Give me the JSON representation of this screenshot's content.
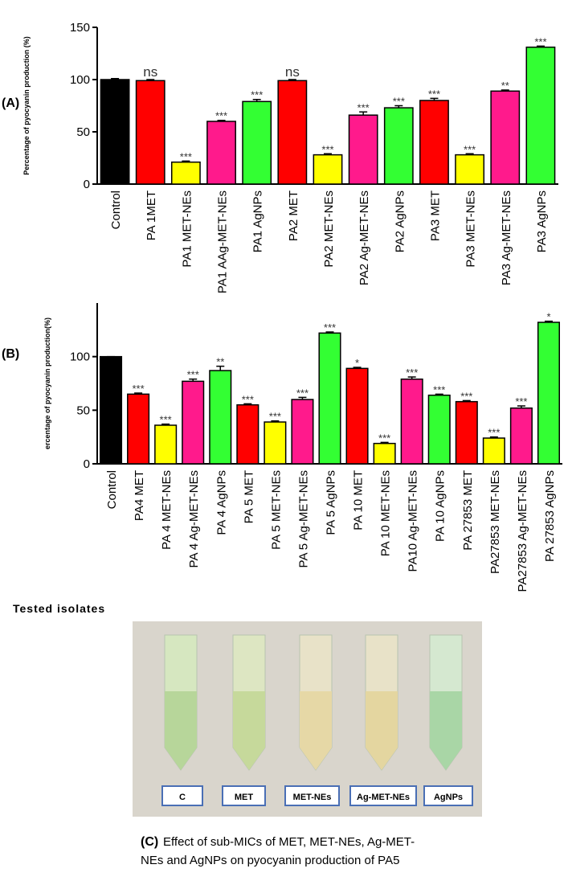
{
  "chart_data": [
    {
      "type": "bar",
      "panel_label": "(A)",
      "y_label": "Percentage of pyocyanin production (%)",
      "categories": [
        "Control",
        "PA 1MET",
        "PA1 MET-NEs",
        "PA1 AAg-MET-NEs",
        "PA1 AgNPs",
        "PA2 MET",
        "PA2 MET-NEs",
        "PA2 Ag-MET-NEs",
        "PA2 AgNPs",
        "PA3 MET",
        "PA3 MET-NEs",
        "PA3 Ag-MET-NEs",
        "PA3 AgNPs"
      ],
      "values": [
        100,
        99,
        21,
        60,
        79,
        99,
        28,
        66,
        73,
        80,
        28,
        89,
        131
      ],
      "errors": [
        1,
        1,
        1,
        1,
        2,
        1,
        1,
        3,
        2,
        2,
        1,
        1,
        1
      ],
      "colors": [
        "#000000",
        "#ff0000",
        "#ffff00",
        "#ff1a8c",
        "#33ff33",
        "#ff0000",
        "#ffff00",
        "#ff1a8c",
        "#33ff33",
        "#ff0000",
        "#ffff00",
        "#ff1a8c",
        "#33ff33"
      ],
      "annotations": [
        null,
        "ns",
        "***",
        "***",
        "***",
        "ns",
        "***",
        "***",
        "***",
        "***",
        "***",
        "**",
        "***"
      ],
      "ylim": [
        0,
        150
      ],
      "yticks": [
        0,
        50,
        100,
        150
      ]
    },
    {
      "type": "bar",
      "panel_label": "(B)",
      "y_label": "ercentage of pyocyanin production(%)",
      "x_label": "Tested isolates",
      "categories": [
        "Control",
        "PA4  MET",
        "PA 4 MET-NEs",
        "PA 4 Ag-MET-NEs",
        "PA 4 AgNPs",
        "PA 5  MET",
        "PA 5  MET-NEs",
        "PA 5 Ag-MET-NEs",
        "PA 5 AgNPs",
        "PA 10 MET",
        "PA 10 MET-NEs",
        "PA10 Ag-MET-NEs",
        "PA 10 AgNPs",
        "PA 27853 MET",
        "PA27853 MET-NEs",
        "PA27853 Ag-MET-NEs",
        "PA 27853 AgNPs"
      ],
      "values": [
        100,
        65,
        36,
        77,
        87,
        55,
        39,
        60,
        122,
        89,
        19,
        79,
        64,
        58,
        24,
        52,
        132
      ],
      "errors": [
        0,
        1,
        1,
        2,
        4,
        1,
        1,
        2,
        1,
        1,
        1,
        2,
        1,
        1,
        1,
        2,
        1
      ],
      "colors": [
        "#000000",
        "#ff0000",
        "#ffff00",
        "#ff1a8c",
        "#33ff33",
        "#ff0000",
        "#ffff00",
        "#ff1a8c",
        "#33ff33",
        "#ff0000",
        "#ffff00",
        "#ff1a8c",
        "#33ff33",
        "#ff0000",
        "#ffff00",
        "#ff1a8c",
        "#33ff33"
      ],
      "annotations": [
        null,
        "***",
        "***",
        "***",
        "**",
        "***",
        "***",
        "***",
        "***",
        "*",
        "***",
        "***",
        "***",
        "***",
        "***",
        "***",
        "*"
      ],
      "ylim": [
        0,
        150
      ],
      "yticks": [
        0,
        50,
        100
      ]
    }
  ],
  "photo": {
    "labels": [
      "C",
      "MET",
      "MET-NEs",
      "Ag-MET-NEs",
      "AgNPs"
    ],
    "panel_label": "(C)",
    "caption_lines": [
      "Effect of sub-MICs of MET, MET-NEs, Ag-MET-",
      "NEs and AgNPs on pyocyanin production of PA5"
    ]
  }
}
